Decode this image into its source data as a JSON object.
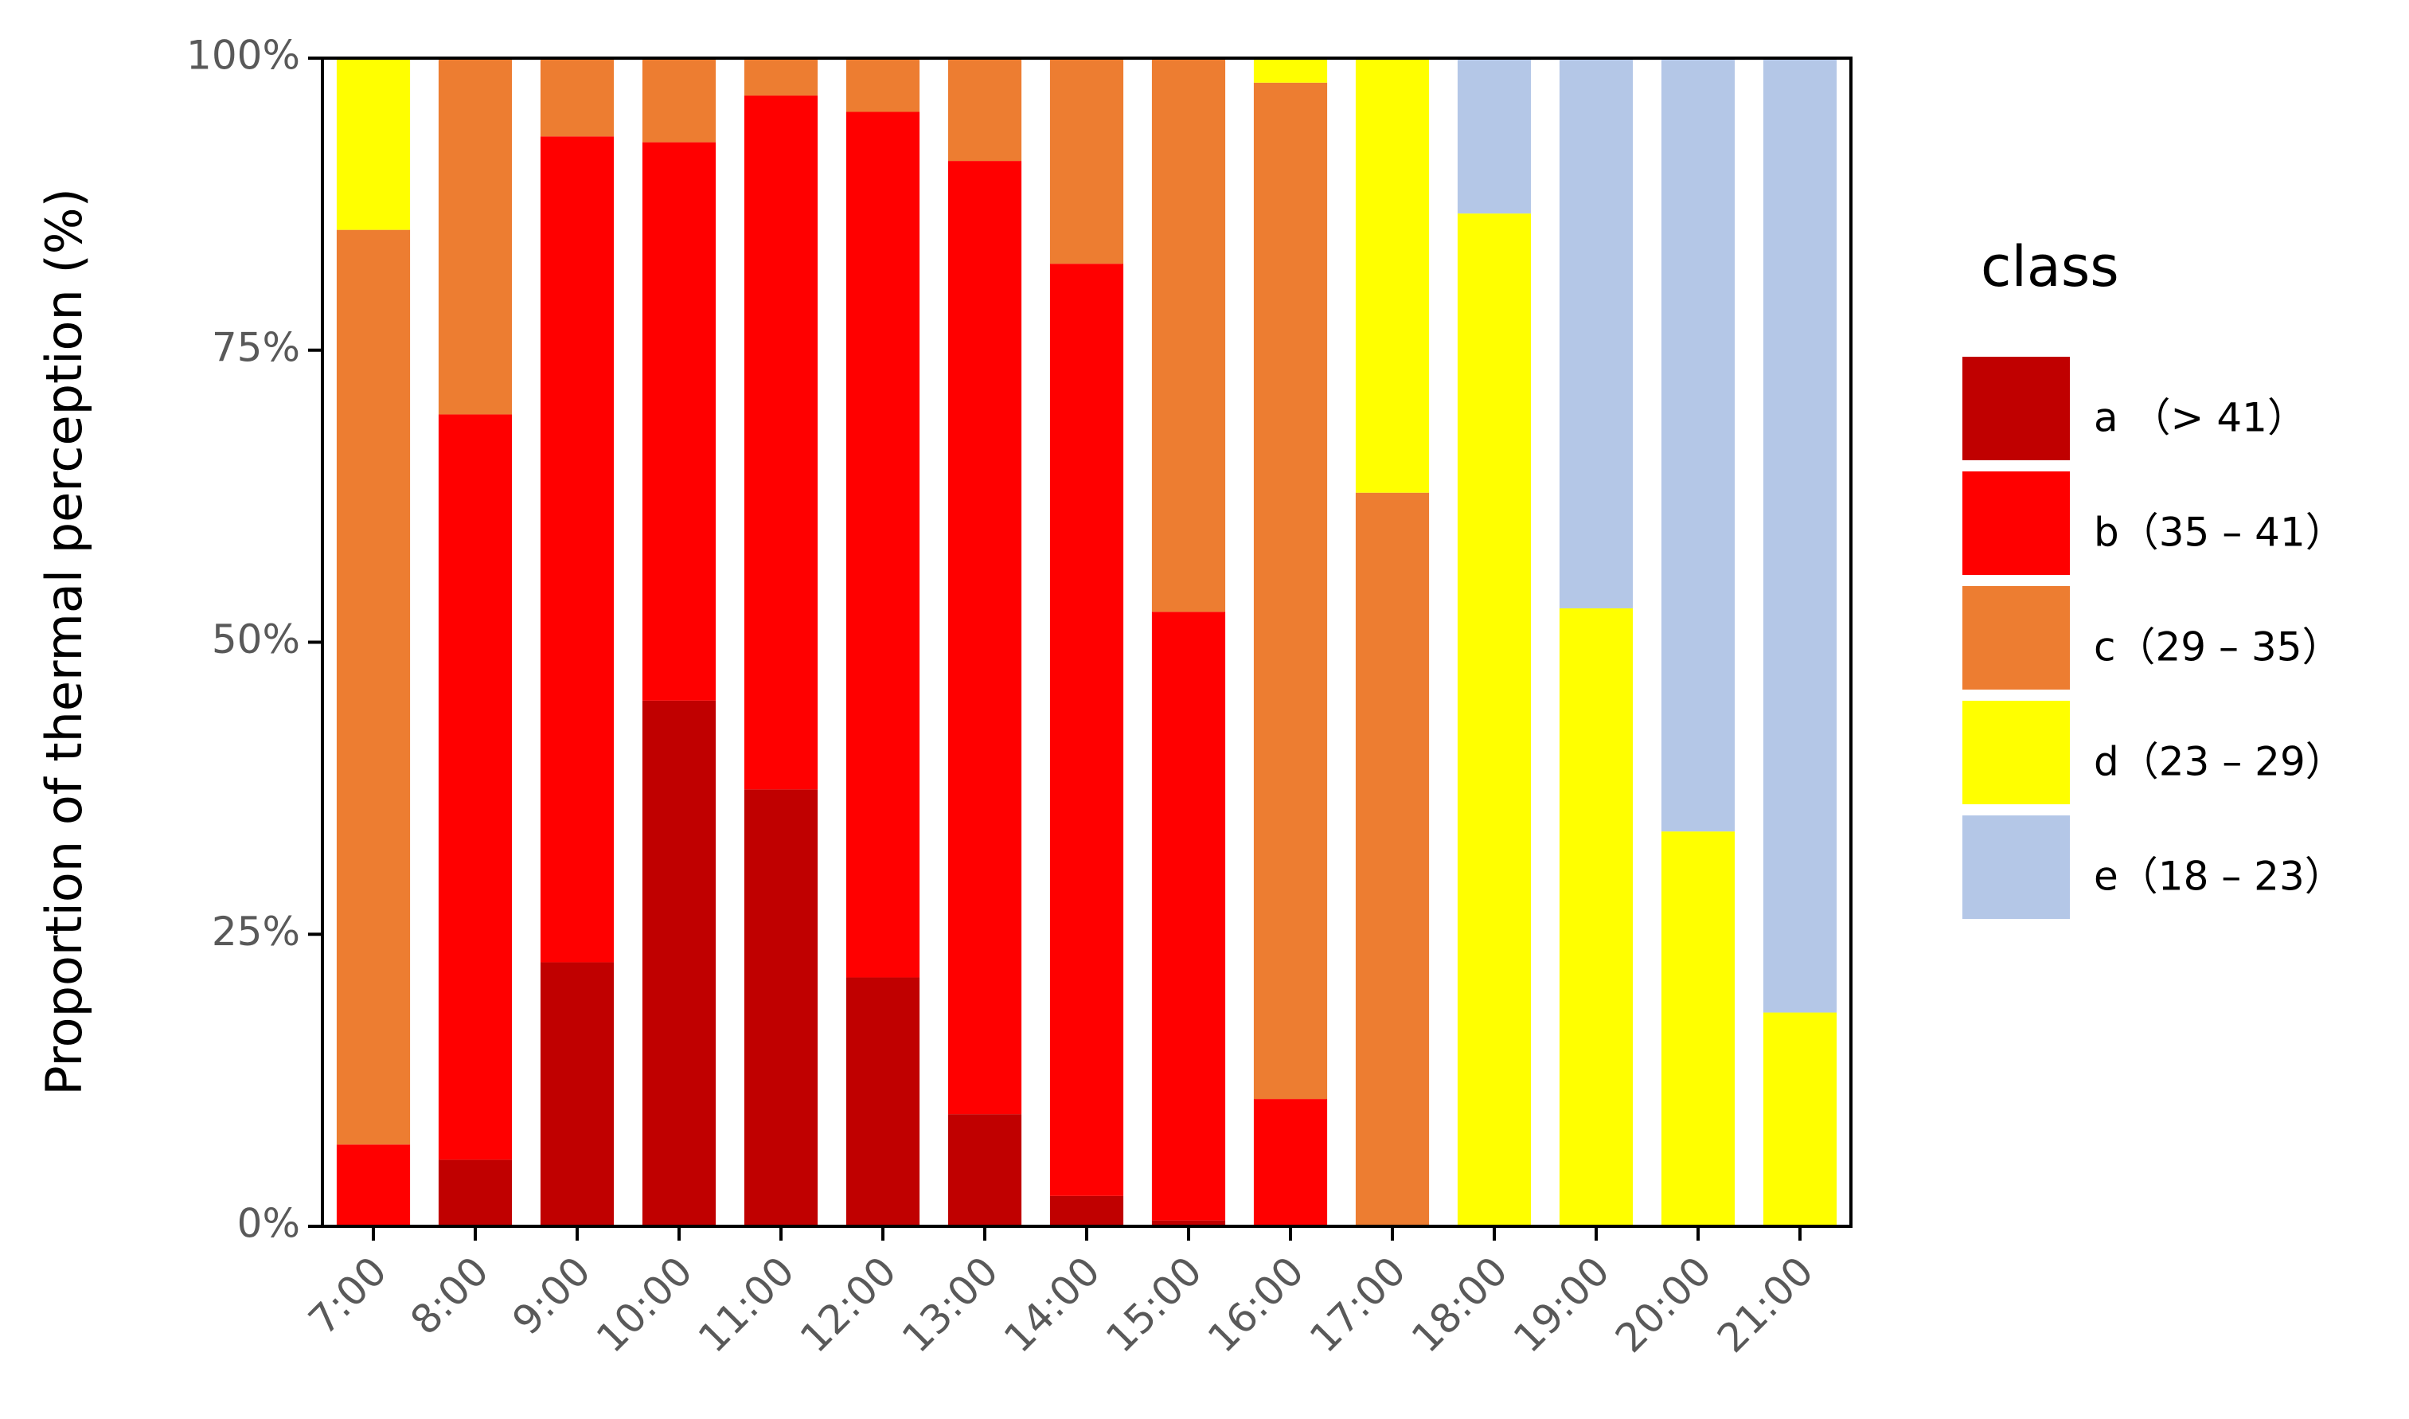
{
  "chart_data": {
    "type": "stacked_bar",
    "y_label": "Proportion of thermal perception (%)",
    "legend_title": "class",
    "legend_position": "right",
    "categories": [
      "7:00",
      "8:00",
      "9:00",
      "10:00",
      "11:00",
      "12:00",
      "13:00",
      "14:00",
      "15:00",
      "16:00",
      "17:00",
      "18:00",
      "19:00",
      "20:00",
      "21:00"
    ],
    "series": [
      {
        "name": "a （> 41）",
        "color": "#c00000",
        "values": [
          0,
          5.7,
          22.6,
          45,
          37.4,
          21.3,
          9.6,
          2.6,
          0.5,
          0,
          0,
          0,
          0,
          0,
          0
        ]
      },
      {
        "name": "b（35 – 41）",
        "color": "#ff0000",
        "values": [
          7,
          63.8,
          70.7,
          47.8,
          59.4,
          74.1,
          81.6,
          79.8,
          52.1,
          10.9,
          0,
          0,
          0,
          0,
          0
        ]
      },
      {
        "name": "c（29 – 35）",
        "color": "#ed7d31",
        "values": [
          78.3,
          30.5,
          6.7,
          7.2,
          3.2,
          4.6,
          8.8,
          17.6,
          47.4,
          87,
          62.8,
          0,
          0,
          0,
          0
        ]
      },
      {
        "name": "d（23 – 29）",
        "color": "#ffff00",
        "values": [
          14.7,
          0,
          0,
          0,
          0,
          0,
          0,
          0,
          0,
          2.1,
          37.2,
          86.7,
          52.9,
          33.8,
          18.3
        ]
      },
      {
        "name": "e（18 – 23）",
        "color": "#b4c7e7",
        "values": [
          0,
          0,
          0,
          0,
          0,
          0,
          0,
          0,
          0,
          0,
          0,
          13.3,
          47.1,
          66.2,
          81.7
        ]
      }
    ],
    "ylim": [
      0,
      100
    ],
    "yticks": [
      {
        "value": 0,
        "label": "0%"
      },
      {
        "value": 25,
        "label": "25%"
      },
      {
        "value": 50,
        "label": "50%"
      },
      {
        "value": 75,
        "label": "75%"
      },
      {
        "value": 100,
        "label": "100%"
      }
    ]
  }
}
